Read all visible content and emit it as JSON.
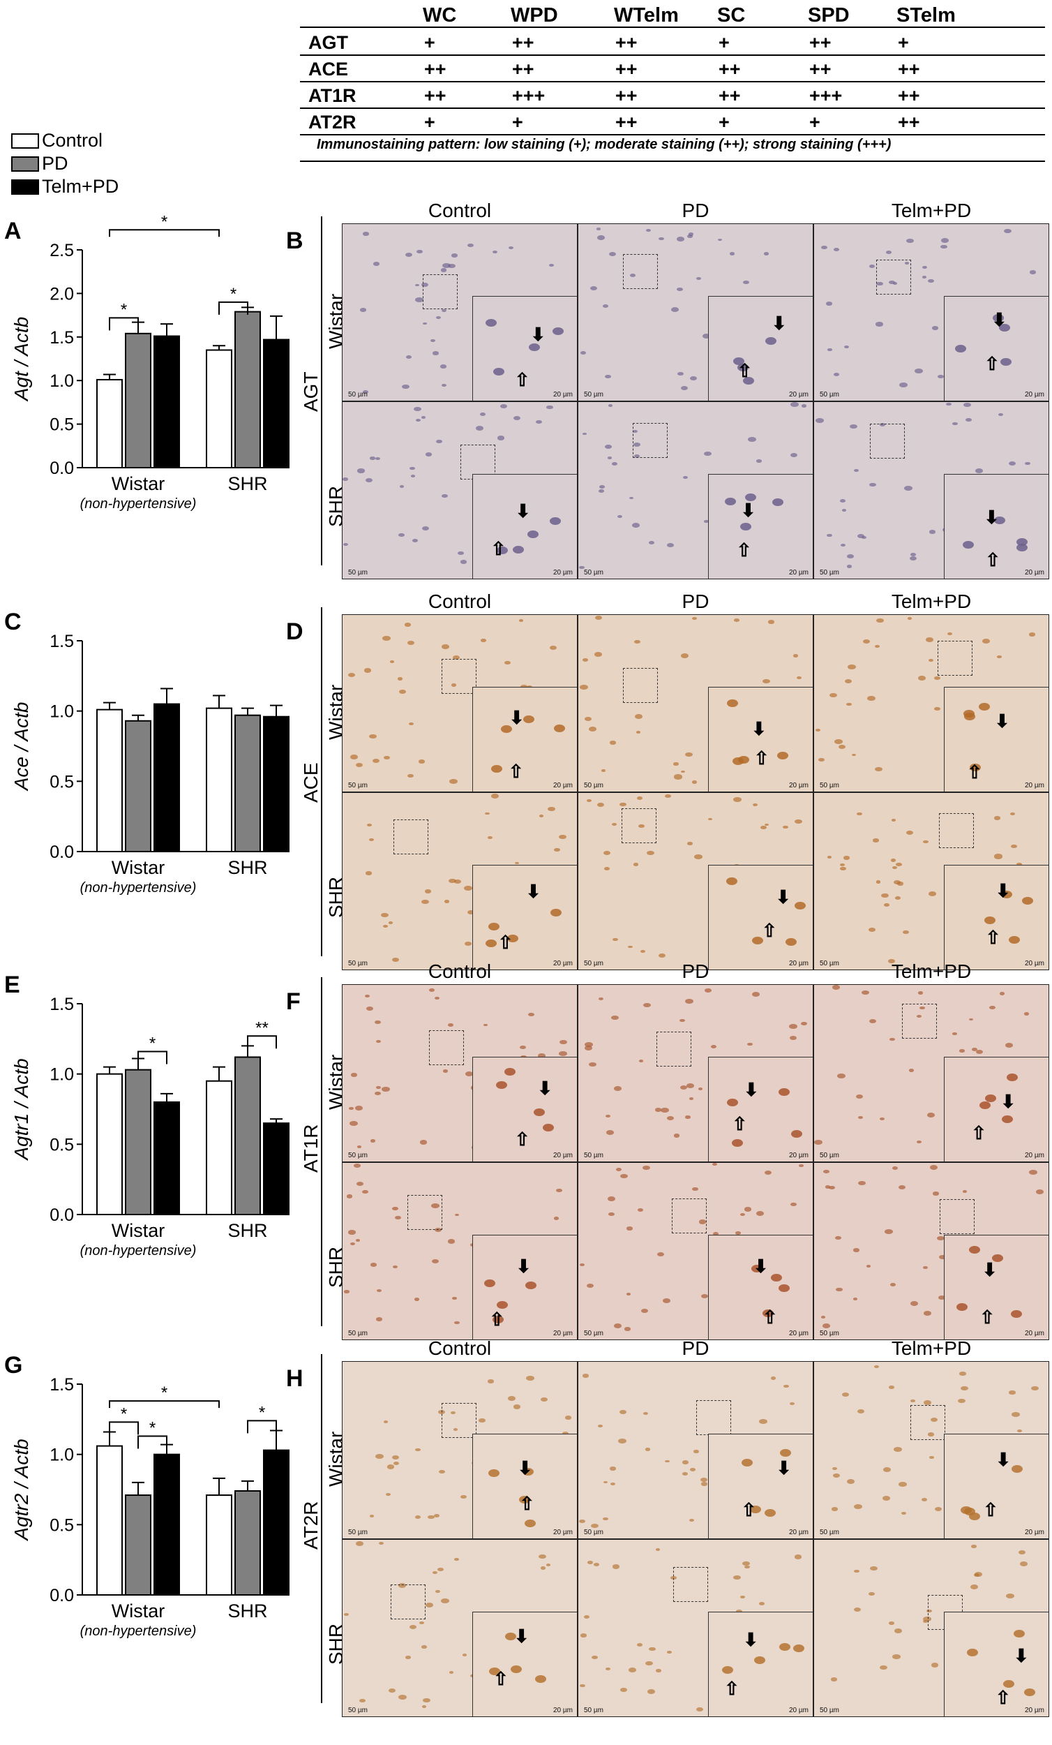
{
  "table": {
    "headers": [
      "WC",
      "WPD",
      "WTelm",
      "SC",
      "SPD",
      "STelm"
    ],
    "rows": [
      {
        "label": "AGT",
        "values": [
          "+",
          "++",
          "++",
          "+",
          "++",
          "+"
        ]
      },
      {
        "label": "ACE",
        "values": [
          "++",
          "++",
          "++",
          "++",
          "++",
          "++"
        ]
      },
      {
        "label": "AT1R",
        "values": [
          "++",
          "+++",
          "++",
          "++",
          "+++",
          "++"
        ]
      },
      {
        "label": "AT2R",
        "values": [
          "+",
          "+",
          "++",
          "+",
          "+",
          "++"
        ]
      }
    ],
    "note": "Immunostaining pattern: low staining (+); moderate staining (++); strong staining (+++)"
  },
  "legend": [
    {
      "label": "Control",
      "color": "#ffffff"
    },
    {
      "label": "PD",
      "color": "#808080"
    },
    {
      "label": "Telm+PD",
      "color": "#000000"
    }
  ],
  "panel_letters": [
    "A",
    "B",
    "C",
    "D",
    "E",
    "F",
    "G",
    "H"
  ],
  "chart_data": [
    {
      "type": "bar",
      "panel": "A",
      "ylabel": "Agt / Actb",
      "categories": [
        "Wistar",
        "SHR"
      ],
      "category_sublabels": [
        "(non-hypertensive)",
        ""
      ],
      "ylim": [
        0,
        2.5
      ],
      "yticks": [
        "0.0",
        "0.5",
        "1.0",
        "1.5",
        "2.0",
        "2.5"
      ],
      "series": [
        {
          "values": [
            1.01,
            1.35
          ],
          "errors": [
            0.06,
            0.05
          ]
        },
        {
          "values": [
            1.54,
            1.79
          ],
          "errors": [
            0.13,
            0.05
          ]
        },
        {
          "values": [
            1.51,
            1.47
          ],
          "errors": [
            0.14,
            0.27
          ]
        }
      ],
      "significance": [
        {
          "from": [
            0,
            0
          ],
          "to": [
            0,
            1
          ],
          "y": 1.72,
          "label": "*"
        },
        {
          "from": [
            1,
            0
          ],
          "to": [
            1,
            1
          ],
          "y": 1.9,
          "label": "*"
        },
        {
          "from": [
            0,
            0
          ],
          "to": [
            1,
            0
          ],
          "y": 2.73,
          "label": "*",
          "long": true
        }
      ]
    },
    {
      "type": "bar",
      "panel": "C",
      "ylabel": "Ace / Actb",
      "categories": [
        "Wistar",
        "SHR"
      ],
      "category_sublabels": [
        "(non-hypertensive)",
        ""
      ],
      "ylim": [
        0,
        1.5
      ],
      "yticks": [
        "0.0",
        "0.5",
        "1.0",
        "1.5"
      ],
      "series": [
        {
          "values": [
            1.01,
            1.02
          ],
          "errors": [
            0.05,
            0.09
          ]
        },
        {
          "values": [
            0.93,
            0.97
          ],
          "errors": [
            0.04,
            0.05
          ]
        },
        {
          "values": [
            1.05,
            0.96
          ],
          "errors": [
            0.11,
            0.08
          ]
        }
      ],
      "significance": []
    },
    {
      "type": "bar",
      "panel": "E",
      "ylabel": "Agtr1 / Actb",
      "categories": [
        "Wistar",
        "SHR"
      ],
      "category_sublabels": [
        "(non-hypertensive)",
        ""
      ],
      "ylim": [
        0,
        1.5
      ],
      "yticks": [
        "0.0",
        "0.5",
        "1.0",
        "1.5"
      ],
      "series": [
        {
          "values": [
            1.0,
            0.95
          ],
          "errors": [
            0.05,
            0.1
          ]
        },
        {
          "values": [
            1.03,
            1.12
          ],
          "errors": [
            0.08,
            0.08
          ]
        },
        {
          "values": [
            0.8,
            0.65
          ],
          "errors": [
            0.06,
            0.03
          ]
        }
      ],
      "significance": [
        {
          "from": [
            0,
            1
          ],
          "to": [
            0,
            2
          ],
          "y": 1.16,
          "label": "*"
        },
        {
          "from": [
            1,
            1
          ],
          "to": [
            1,
            2
          ],
          "y": 1.27,
          "label": "**"
        }
      ]
    },
    {
      "type": "bar",
      "panel": "G",
      "ylabel": "Agtr2 / Actb",
      "categories": [
        "Wistar",
        "SHR"
      ],
      "category_sublabels": [
        "(non-hypertensive)",
        ""
      ],
      "ylim": [
        0,
        1.5
      ],
      "yticks": [
        "0.0",
        "0.5",
        "1.0",
        "1.5"
      ],
      "series": [
        {
          "values": [
            1.06,
            0.71
          ],
          "errors": [
            0.1,
            0.12
          ]
        },
        {
          "values": [
            0.71,
            0.74
          ],
          "errors": [
            0.09,
            0.07
          ]
        },
        {
          "values": [
            1.0,
            1.03
          ],
          "errors": [
            0.07,
            0.14
          ]
        }
      ],
      "significance": [
        {
          "from": [
            0,
            0
          ],
          "to": [
            0,
            1
          ],
          "y": 1.23,
          "label": "*"
        },
        {
          "from": [
            0,
            1
          ],
          "to": [
            0,
            2
          ],
          "y": 1.13,
          "label": "*"
        },
        {
          "from": [
            1,
            1
          ],
          "to": [
            1,
            2
          ],
          "y": 1.24,
          "label": "*"
        },
        {
          "from": [
            0,
            0
          ],
          "to": [
            1,
            0
          ],
          "y": 1.38,
          "label": "*",
          "long": true
        }
      ]
    }
  ],
  "micrographs": {
    "column_headers": [
      "Control",
      "PD",
      "Telm+PD"
    ],
    "row_labels": [
      "Wistar",
      "SHR"
    ],
    "panels": [
      {
        "letter": "B",
        "stain": "AGT"
      },
      {
        "letter": "D",
        "stain": "ACE"
      },
      {
        "letter": "F",
        "stain": "AT1R"
      },
      {
        "letter": "H",
        "stain": "AT2R"
      }
    ],
    "scale_main": "50 µm",
    "scale_inset": "20 µm"
  }
}
